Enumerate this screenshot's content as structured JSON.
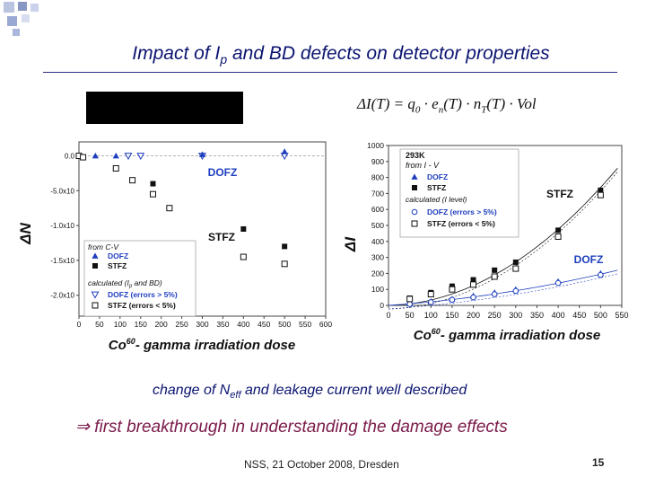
{
  "slide": {
    "title_pre": "Impact of I",
    "title_sub": "p",
    "title_post": " and BD defects on detector properties",
    "formula": {
      "lhs": "ΔI(T) = q",
      "q_sub": "0",
      "e_pre": " · e",
      "e_sub": "n",
      "n_pre": "(T) · n",
      "n_sub": "T",
      "rest": "(T) · Vol"
    },
    "caption_pre": "change of N",
    "caption_sub": "eff",
    "caption_post": " and leakage current well described",
    "conclusion": "first breakthrough in understanding the damage effects",
    "footer": "NSS, 21 October 2008, Dresden",
    "page_number": "15",
    "colors": {
      "title": "#0b1470",
      "conclusion": "#7a1a4a",
      "dofz": "#1f3fbf",
      "stfz": "#111111"
    },
    "icons": [
      "implies-icon",
      "decorative-squares"
    ]
  },
  "chart_data": [
    {
      "type": "scatter",
      "ylabel": "ΔN",
      "x_axis_title": "Co",
      "x_axis_title_sup": "60",
      "x_axis_title_rest": "- gamma irradiation dose",
      "xlim": [
        0,
        600
      ],
      "ylim": [
        -2300000000000.0,
        200000000000.0
      ],
      "x_ticks": [
        0,
        50,
        100,
        150,
        200,
        250,
        300,
        350,
        400,
        450,
        500,
        550,
        600
      ],
      "y_ticks": [
        {
          "value": 0,
          "label": "0.0"
        },
        {
          "value": -500000000000.0,
          "label": "-5.0x10"
        },
        {
          "value": -1000000000000.0,
          "label": "-1.0x10"
        },
        {
          "value": -1500000000000.0,
          "label": "-1.5x10"
        },
        {
          "value": -2000000000000.0,
          "label": "-2.0x10"
        }
      ],
      "annotations": [
        "DOFZ",
        "STFZ"
      ],
      "legend_title": "from C-V",
      "legend_sub": "calculated (I",
      "legend_sub_i": "p",
      "legend_sub_rest": " and BD)",
      "series": [
        {
          "name": "DOFZ",
          "marker": "triangle-up-filled",
          "color": "#1f3fbf",
          "x": [
            0,
            40,
            90,
            300,
            500
          ],
          "y": [
            0,
            0,
            0,
            20000000000.0,
            60000000000.0
          ]
        },
        {
          "name": "STFZ",
          "marker": "square-filled",
          "color": "#111111",
          "x": [
            180,
            400,
            500
          ],
          "y": [
            -400000000000.0,
            -1050000000000.0,
            -1300000000000.0
          ]
        },
        {
          "name": "DOFZ (errors > 5%)",
          "marker": "triangle-down-open",
          "color": "#1f3fbf",
          "x": [
            120,
            150,
            300,
            500
          ],
          "y": [
            0,
            0,
            0,
            0
          ]
        },
        {
          "name": "STFZ (errors < 5%)",
          "marker": "square-open",
          "color": "#111111",
          "x": [
            0,
            10,
            90,
            130,
            180,
            220,
            400,
            500
          ],
          "y": [
            0,
            -20000000000.0,
            -180000000000.0,
            -350000000000.0,
            -550000000000.0,
            -750000000000.0,
            -1450000000000.0,
            -1550000000000.0
          ]
        }
      ]
    },
    {
      "type": "scatter",
      "ylabel": "ΔI",
      "x_axis_title": "Co",
      "x_axis_title_sup": "60",
      "x_axis_title_rest": "- gamma irradiation dose",
      "xlim": [
        0,
        550
      ],
      "ylim": [
        0,
        1000
      ],
      "x_ticks": [
        0,
        50,
        100,
        150,
        200,
        250,
        300,
        350,
        400,
        450,
        500,
        550
      ],
      "y_ticks": [
        0,
        100,
        200,
        300,
        400,
        500,
        600,
        700,
        800,
        900,
        1000
      ],
      "annotations": [
        "STFZ",
        "DOFZ"
      ],
      "legend_title": "293K",
      "legend_title2": "from I - V",
      "legend_sub": "calculated (I level)",
      "series": [
        {
          "name": "DOFZ",
          "marker": "triangle-up-filled",
          "color": "#1f3fbf",
          "x": [
            50,
            100,
            150,
            200,
            250,
            300,
            400,
            500
          ],
          "y": [
            10,
            25,
            40,
            60,
            80,
            100,
            150,
            200
          ]
        },
        {
          "name": "STFZ",
          "marker": "square-filled",
          "color": "#111111",
          "x": [
            50,
            100,
            150,
            200,
            250,
            300,
            400,
            500
          ],
          "y": [
            45,
            80,
            120,
            160,
            220,
            270,
            470,
            720
          ]
        },
        {
          "name": "DOFZ (errors > 5%)",
          "marker": "circle-open",
          "color": "#1f3fbf",
          "x": [
            50,
            100,
            150,
            200,
            250,
            300,
            400,
            500
          ],
          "y": [
            8,
            20,
            35,
            50,
            70,
            90,
            140,
            190
          ]
        },
        {
          "name": "STFZ (errors < 5%)",
          "marker": "square-open",
          "color": "#111111",
          "x": [
            50,
            100,
            150,
            200,
            250,
            300,
            400,
            500
          ],
          "y": [
            40,
            70,
            100,
            130,
            180,
            230,
            430,
            690
          ]
        }
      ]
    }
  ]
}
